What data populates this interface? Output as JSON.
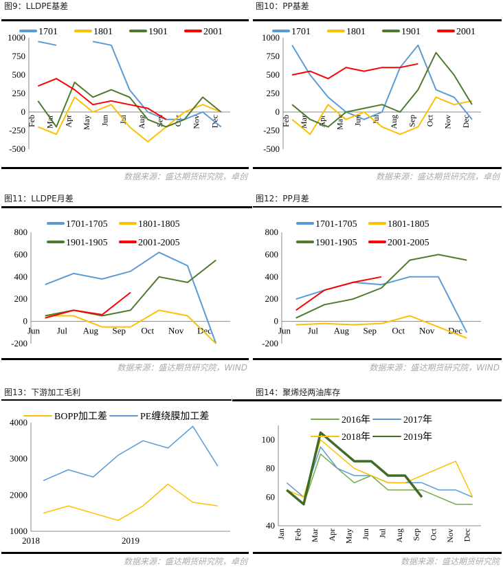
{
  "panels": [
    {
      "title": "图9：LLDPE基差",
      "source": "数据来源：盛达期货研究院，卓创"
    },
    {
      "title": "图10：PP基差",
      "source": "数据来源：盛达期货研究院，卓创"
    },
    {
      "title": "图11：LLDPE月差",
      "source": "数据来源：盛达期货研究院，WIND"
    },
    {
      "title": "图12：PP月差",
      "source": "数据来源：盛达期货研究院，WIND"
    },
    {
      "title": "图13：下游加工毛利",
      "source": "数据来源：盛达期货研究院，卓创"
    },
    {
      "title": "图14：聚烯烃两油库存",
      "source": "数据来源：盛达期货研究院"
    }
  ],
  "chart_data": [
    {
      "type": "line",
      "legend": "top",
      "ylim": [
        -500,
        1000
      ],
      "yticks": [
        1000,
        750,
        500,
        250,
        0,
        -250,
        -500
      ],
      "categories": [
        "Feb",
        "Mar",
        "Apr",
        "May",
        "Jun",
        "Jul",
        "Aug",
        "Sep",
        "Oct",
        "Nov",
        "Dec"
      ],
      "series": [
        {
          "name": "1701",
          "color": "#5b9bd5",
          "values": [
            950,
            900,
            null,
            950,
            900,
            300,
            0,
            -100,
            -100,
            0,
            -200
          ]
        },
        {
          "name": "1801",
          "color": "#ffc000",
          "values": [
            -200,
            -300,
            200,
            0,
            100,
            -200,
            -400,
            -200,
            0,
            100,
            0
          ]
        },
        {
          "name": "1901",
          "color": "#4e7a2e",
          "values": [
            150,
            -200,
            400,
            200,
            300,
            200,
            -100,
            -200,
            -100,
            200,
            0
          ]
        },
        {
          "name": "2001",
          "color": "#ff0000",
          "values": [
            350,
            450,
            300,
            100,
            150,
            100,
            50,
            -100,
            null,
            null,
            null
          ]
        }
      ]
    },
    {
      "type": "line",
      "legend": "top",
      "ylim": [
        -500,
        1000
      ],
      "yticks": [
        1000,
        750,
        500,
        250,
        0,
        -250,
        -500
      ],
      "categories": [
        "Feb",
        "Mar",
        "Apr",
        "May",
        "Jun",
        "Jul",
        "Aug",
        "Sep",
        "Oct",
        "Nov",
        "Dec"
      ],
      "series": [
        {
          "name": "1701",
          "color": "#5b9bd5",
          "values": [
            900,
            500,
            200,
            0,
            -100,
            0,
            600,
            900,
            300,
            200,
            -100
          ]
        },
        {
          "name": "1801",
          "color": "#ffc000",
          "values": [
            -100,
            -300,
            100,
            -100,
            0,
            -200,
            -300,
            -200,
            200,
            100,
            150
          ]
        },
        {
          "name": "1901",
          "color": "#4e7a2e",
          "values": [
            100,
            -100,
            -200,
            0,
            50,
            100,
            0,
            300,
            800,
            500,
            100
          ]
        },
        {
          "name": "2001",
          "color": "#ff0000",
          "values": [
            500,
            550,
            450,
            600,
            550,
            600,
            600,
            650,
            null,
            null,
            null
          ]
        }
      ]
    },
    {
      "type": "line",
      "legend": "top",
      "ylim": [
        -200,
        800
      ],
      "yticks": [
        800,
        600,
        400,
        200,
        0,
        -200
      ],
      "categories": [
        "Jun",
        "Jul",
        "Aug",
        "Sep",
        "Oct",
        "Nov",
        "Dec"
      ],
      "series": [
        {
          "name": "1701-1705",
          "color": "#5b9bd5",
          "values": [
            330,
            430,
            380,
            450,
            620,
            500,
            -200
          ]
        },
        {
          "name": "1801-1805",
          "color": "#ffc000",
          "values": [
            50,
            50,
            -50,
            -50,
            100,
            50,
            -200
          ]
        },
        {
          "name": "1901-1905",
          "color": "#4e7a2e",
          "values": [
            50,
            100,
            50,
            100,
            400,
            350,
            550
          ]
        },
        {
          "name": "2001-2005",
          "color": "#ff0000",
          "values": [
            30,
            100,
            60,
            260,
            null,
            null,
            null
          ]
        }
      ]
    },
    {
      "type": "line",
      "legend": "top",
      "ylim": [
        -200,
        800
      ],
      "yticks": [
        800,
        600,
        400,
        200,
        0,
        -200
      ],
      "categories": [
        "Jun",
        "Jul",
        "Aug",
        "Sep",
        "Oct",
        "Nov",
        "Dec"
      ],
      "series": [
        {
          "name": "1701-1705",
          "color": "#5b9bd5",
          "values": [
            200,
            280,
            350,
            330,
            400,
            400,
            -100
          ]
        },
        {
          "name": "1801-1805",
          "color": "#ffc000",
          "values": [
            -30,
            -20,
            -30,
            -20,
            50,
            -50,
            -150
          ]
        },
        {
          "name": "1901-1905",
          "color": "#4e7a2e",
          "values": [
            30,
            150,
            200,
            300,
            550,
            600,
            550
          ]
        },
        {
          "name": "2001-2005",
          "color": "#ff0000",
          "values": [
            100,
            280,
            350,
            400,
            null,
            null,
            null
          ]
        }
      ]
    },
    {
      "type": "line",
      "legend": "top",
      "ylim": [
        1000,
        4000
      ],
      "yticks": [
        4000,
        3000,
        2000,
        1000
      ],
      "categories": [
        "2018",
        "",
        "",
        "",
        "2019",
        "",
        "",
        ""
      ],
      "series": [
        {
          "name": "BOPP加工差",
          "color": "#ffc000",
          "values": [
            1500,
            1700,
            1500,
            1300,
            1700,
            2300,
            1800,
            1700
          ]
        },
        {
          "name": "PE缠绕膜加工差",
          "color": "#5b9bd5",
          "values": [
            2400,
            2700,
            2500,
            3100,
            3500,
            3300,
            3900,
            2800
          ]
        }
      ]
    },
    {
      "type": "line",
      "legend": "top",
      "ylim": [
        40,
        110
      ],
      "yticks": [
        100,
        80,
        60,
        40
      ],
      "categories": [
        "Jan",
        "Feb",
        "Mar",
        "Apr",
        "May",
        "Jun",
        "Jul",
        "Aug",
        "Sep",
        "Oct",
        "Nov",
        "Dec"
      ],
      "series": [
        {
          "name": "2016年",
          "color": "#70ad47",
          "values": [
            65,
            55,
            90,
            80,
            70,
            75,
            65,
            65,
            65,
            60,
            55,
            55
          ]
        },
        {
          "name": "2017年",
          "color": "#5b9bd5",
          "values": [
            70,
            60,
            95,
            80,
            75,
            75,
            70,
            70,
            70,
            65,
            65,
            60
          ]
        },
        {
          "name": "2018年",
          "color": "#ffc000",
          "values": [
            65,
            60,
            100,
            90,
            80,
            75,
            70,
            70,
            75,
            80,
            85,
            60
          ]
        },
        {
          "name": "2019年",
          "color": "#3f6b26",
          "values": [
            65,
            55,
            105,
            95,
            85,
            85,
            75,
            75,
            60,
            null,
            null,
            null
          ]
        }
      ]
    }
  ]
}
